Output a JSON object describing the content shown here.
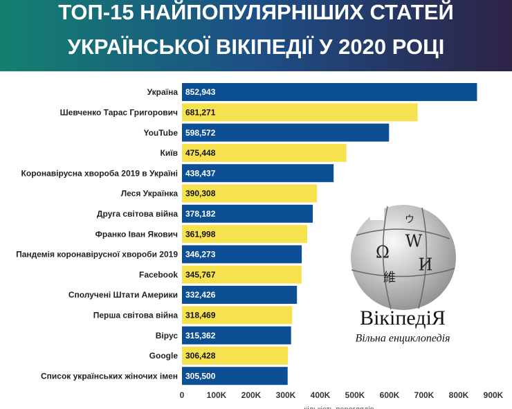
{
  "chart_data": {
    "type": "barh",
    "title": [
      "ТОП-15 НАЙПОПУЛЯРНІШИХ СТАТЕЙ",
      "УКРАЇНСЬКОЇ ВІКІПЕДІЇ У 2020 РОЦІ"
    ],
    "categories": [
      "Україна",
      "Шевченко Тарас Григорович",
      "YouTube",
      "Київ",
      "Коронавірусна хвороба 2019 в Україні",
      "Леся Українка",
      "Друга світова війна",
      "Франко Іван Якович",
      "Пандемія коронавірусної хвороби 2019",
      "Facebook",
      "Сполучені Штати Америки",
      "Перша світова війна",
      "Вірус",
      "Google",
      "Список українських жіночих імен"
    ],
    "values": [
      852943,
      681271,
      598572,
      475448,
      438437,
      390308,
      378182,
      361998,
      346273,
      345767,
      332426,
      318469,
      315362,
      306428,
      305500
    ],
    "value_labels": [
      "852,943",
      "681,271",
      "598,572",
      "475,448",
      "438,437",
      "390,308",
      "378,182",
      "361,998",
      "346,273",
      "345,767",
      "332,426",
      "318,469",
      "315,362",
      "306,428",
      "305,500"
    ],
    "colors": [
      "#0d4f94",
      "#f6e24f"
    ],
    "xlim": [
      0,
      900000
    ],
    "xticks": [
      0,
      {
        "value": 100000,
        "label": "100K"
      },
      {
        "value": 200000,
        "label": "200K"
      },
      {
        "value": 300000,
        "label": "300K"
      },
      {
        "value": 400000,
        "label": "400K"
      },
      {
        "value": 500000,
        "label": "500K"
      },
      {
        "value": 600000,
        "label": "600K"
      },
      {
        "value": 700000,
        "label": "700K"
      },
      {
        "value": 800000,
        "label": "800K"
      },
      {
        "value": 900000,
        "label": "900K"
      }
    ],
    "xlabel": "кількість переглядів"
  },
  "logo": {
    "name": "ВікіпедіЯ",
    "tagline": "Вільна енциклопедія",
    "glyphs": [
      "Ω",
      "W",
      "И",
      "維",
      "ウ"
    ]
  }
}
